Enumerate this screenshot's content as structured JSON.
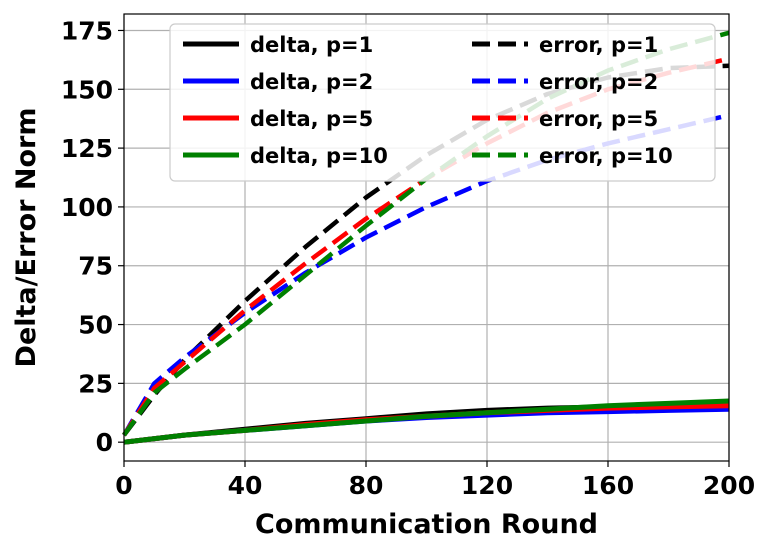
{
  "chart_data": {
    "type": "line",
    "xlabel": "Communication Round",
    "ylabel": "Delta/Error Norm",
    "xlim": [
      0,
      200
    ],
    "ylim": [
      -8,
      182
    ],
    "xticks": [
      0,
      40,
      80,
      120,
      160,
      200
    ],
    "yticks": [
      0,
      25,
      50,
      75,
      100,
      125,
      150,
      175
    ],
    "grid": true,
    "legend_position": "top-center",
    "legend_columns": 2,
    "series": [
      {
        "name": "delta, p=1",
        "color": "#000000",
        "style": "solid",
        "x": [
          0,
          20,
          40,
          60,
          80,
          100,
          120,
          140,
          160,
          180,
          200
        ],
        "y": [
          0,
          3,
          5.5,
          8,
          10,
          12,
          13.5,
          14.5,
          15,
          15.5,
          16
        ]
      },
      {
        "name": "delta, p=2",
        "color": "#0000ff",
        "style": "solid",
        "x": [
          0,
          20,
          40,
          60,
          80,
          100,
          120,
          140,
          160,
          180,
          200
        ],
        "y": [
          0,
          3,
          5,
          7,
          9,
          10.5,
          11.5,
          12.5,
          13,
          13.5,
          14
        ]
      },
      {
        "name": "delta, p=5",
        "color": "#ff0000",
        "style": "solid",
        "x": [
          0,
          20,
          40,
          60,
          80,
          100,
          120,
          140,
          160,
          180,
          200
        ],
        "y": [
          0,
          3,
          5,
          7.5,
          9.5,
          11,
          12.5,
          13.5,
          14.5,
          15,
          15.5
        ]
      },
      {
        "name": "delta, p=10",
        "color": "#008000",
        "style": "solid",
        "x": [
          0,
          20,
          40,
          60,
          80,
          100,
          120,
          140,
          160,
          180,
          200
        ],
        "y": [
          0,
          3,
          5,
          7,
          9,
          11,
          12.5,
          14,
          15.5,
          16.5,
          17.5
        ]
      },
      {
        "name": "error, p=1",
        "color": "#000000",
        "style": "dashed",
        "x": [
          0,
          10,
          20,
          40,
          60,
          80,
          100,
          120,
          140,
          160,
          180,
          200
        ],
        "y": [
          3,
          20,
          35,
          60,
          83,
          104,
          122,
          137,
          148,
          155,
          159,
          160
        ]
      },
      {
        "name": "error, p=2",
        "color": "#0000ff",
        "style": "dashed",
        "x": [
          0,
          10,
          20,
          40,
          60,
          80,
          100,
          120,
          140,
          160,
          180,
          200
        ],
        "y": [
          3,
          25,
          36,
          55,
          72,
          87,
          100,
          111,
          120,
          127,
          133,
          139
        ]
      },
      {
        "name": "error, p=5",
        "color": "#ff0000",
        "style": "dashed",
        "x": [
          0,
          10,
          20,
          40,
          60,
          80,
          100,
          120,
          140,
          160,
          180,
          200
        ],
        "y": [
          3,
          23,
          34,
          56,
          76,
          95,
          112,
          127,
          140,
          150,
          157,
          163
        ]
      },
      {
        "name": "error, p=10",
        "color": "#008000",
        "style": "dashed",
        "x": [
          0,
          10,
          20,
          40,
          60,
          80,
          100,
          120,
          140,
          160,
          180,
          200
        ],
        "y": [
          3,
          21,
          31,
          50,
          71,
          92,
          112,
          130,
          146,
          158,
          167,
          174
        ]
      }
    ]
  }
}
